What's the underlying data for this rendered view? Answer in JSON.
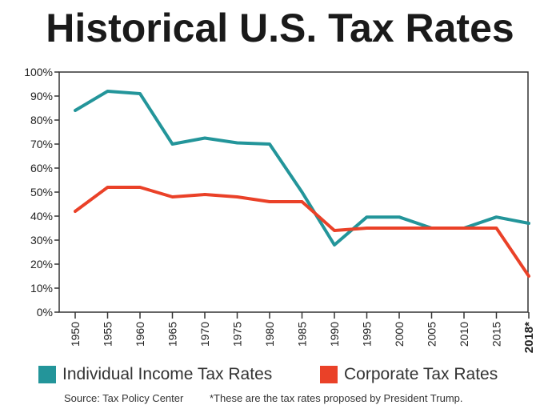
{
  "chart_data": {
    "type": "line",
    "title": "Historical U.S. Tax Rates",
    "categories": [
      "1950",
      "1955",
      "1960",
      "1965",
      "1970",
      "1975",
      "1980",
      "1985",
      "1990",
      "1995",
      "2000",
      "2005",
      "2010",
      "2015",
      "2018*"
    ],
    "series": [
      {
        "name": "Individual Income Tax Rates",
        "color": "#23959a",
        "values": [
          84,
          92,
          91,
          70,
          72.5,
          70.5,
          70,
          50,
          28,
          39.6,
          39.6,
          35,
          35,
          39.6,
          37
        ]
      },
      {
        "name": "Corporate Tax Rates",
        "color": "#ea4128",
        "values": [
          42,
          52,
          52,
          48,
          49,
          48,
          46,
          46,
          34,
          35,
          35,
          35,
          35,
          35,
          15
        ]
      }
    ],
    "ylim": [
      0,
      100
    ],
    "yticks": [
      "0%",
      "10%",
      "20%",
      "30%",
      "40%",
      "50%",
      "60%",
      "70%",
      "80%",
      "90%",
      "100%"
    ],
    "ytick_values": [
      0,
      10,
      20,
      30,
      40,
      50,
      60,
      70,
      80,
      90,
      100
    ],
    "grid": false,
    "legend": "bottom"
  },
  "footer": {
    "source": "Source: Tax Policy Center",
    "note": "*These are the tax rates proposed by President Trump."
  }
}
